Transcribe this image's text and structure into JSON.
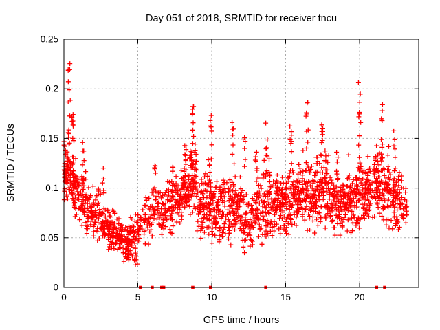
{
  "chart_data": {
    "type": "scatter",
    "title": "Day 051 of 2018, SRMTID for receiver tncu",
    "xlabel": "GPS time / hours",
    "ylabel": "SRMTID / TECUs",
    "xlim": [
      0,
      24
    ],
    "ylim": [
      0,
      0.25
    ],
    "xticks": {
      "values": [
        0,
        5,
        10,
        15,
        20
      ],
      "labels": [
        "0",
        "5",
        "10",
        "15",
        "20"
      ]
    },
    "yticks": {
      "values": [
        0,
        0.05,
        0.1,
        0.15,
        0.2,
        0.25
      ],
      "labels": [
        "0",
        "0.05",
        "0.1",
        "0.15",
        "0.2",
        "0.25"
      ]
    },
    "grid": true,
    "grid_style": "dashed",
    "grid_color": "#a8a8a8",
    "border_color": "#000000",
    "background": "#ffffff",
    "legend": "none",
    "series": [
      {
        "name": "srmtid-points",
        "marker": "plus",
        "color": "#ff0000",
        "marker_size": 7,
        "point_count_approx": 2260,
        "x_data_range": [
          0.05,
          23.2
        ],
        "generator": {
          "note": "dense scatter reconstructed from density profile read off the plot; bins are [x_start, count, band_low, band_high] per 0.5 h",
          "seed": 20180051,
          "bin_width": 0.5,
          "x_cutoff": 23.2,
          "density_bins": [
            [
              0.0,
              65,
              0.085,
              0.155
            ],
            [
              0.5,
              55,
              0.07,
              0.135
            ],
            [
              1.0,
              45,
              0.06,
              0.12
            ],
            [
              1.5,
              40,
              0.05,
              0.105
            ],
            [
              2.0,
              40,
              0.045,
              0.1
            ],
            [
              2.5,
              42,
              0.04,
              0.09
            ],
            [
              3.0,
              48,
              0.035,
              0.08
            ],
            [
              3.5,
              52,
              0.033,
              0.072
            ],
            [
              4.0,
              52,
              0.022,
              0.065
            ],
            [
              4.5,
              42,
              0.018,
              0.08
            ],
            [
              5.0,
              26,
              0.035,
              0.09
            ],
            [
              5.5,
              30,
              0.04,
              0.1
            ],
            [
              6.0,
              34,
              0.042,
              0.105
            ],
            [
              6.5,
              34,
              0.045,
              0.105
            ],
            [
              7.0,
              38,
              0.05,
              0.11
            ],
            [
              7.5,
              46,
              0.055,
              0.12
            ],
            [
              8.0,
              52,
              0.065,
              0.135
            ],
            [
              8.5,
              56,
              0.065,
              0.15
            ],
            [
              9.0,
              44,
              0.045,
              0.115
            ],
            [
              9.5,
              52,
              0.05,
              0.13
            ],
            [
              10.0,
              42,
              0.04,
              0.115
            ],
            [
              10.5,
              38,
              0.038,
              0.105
            ],
            [
              11.0,
              42,
              0.042,
              0.115
            ],
            [
              11.5,
              42,
              0.042,
              0.12
            ],
            [
              12.0,
              38,
              0.032,
              0.105
            ],
            [
              12.5,
              38,
              0.038,
              0.105
            ],
            [
              13.0,
              42,
              0.042,
              0.115
            ],
            [
              13.5,
              50,
              0.048,
              0.13
            ],
            [
              14.0,
              46,
              0.048,
              0.115
            ],
            [
              14.5,
              46,
              0.05,
              0.12
            ],
            [
              15.0,
              46,
              0.05,
              0.125
            ],
            [
              15.5,
              50,
              0.052,
              0.13
            ],
            [
              16.0,
              50,
              0.055,
              0.14
            ],
            [
              16.5,
              46,
              0.052,
              0.13
            ],
            [
              17.0,
              50,
              0.055,
              0.14
            ],
            [
              17.5,
              50,
              0.055,
              0.145
            ],
            [
              18.0,
              46,
              0.05,
              0.125
            ],
            [
              18.5,
              42,
              0.048,
              0.115
            ],
            [
              19.0,
              42,
              0.048,
              0.12
            ],
            [
              19.5,
              42,
              0.05,
              0.12
            ],
            [
              20.0,
              44,
              0.055,
              0.13
            ],
            [
              20.5,
              46,
              0.055,
              0.135
            ],
            [
              21.0,
              50,
              0.065,
              0.148
            ],
            [
              21.5,
              50,
              0.06,
              0.145
            ],
            [
              22.0,
              44,
              0.052,
              0.132
            ],
            [
              22.5,
              42,
              0.048,
              0.12
            ],
            [
              23.0,
              14,
              0.055,
              0.11
            ]
          ],
          "spike_clusters_note": "vertical outlier columns as [x, y_min, y_max, n_points]",
          "spike_clusters": [
            [
              0.35,
              0.145,
              0.226,
              14
            ],
            [
              0.6,
              0.13,
              0.175,
              10
            ],
            [
              1.3,
              0.1,
              0.147,
              6
            ],
            [
              2.7,
              0.095,
              0.13,
              5
            ],
            [
              6.15,
              0.09,
              0.125,
              7
            ],
            [
              7.35,
              0.1,
              0.13,
              5
            ],
            [
              8.25,
              0.11,
              0.155,
              8
            ],
            [
              8.7,
              0.12,
              0.192,
              12
            ],
            [
              9.95,
              0.115,
              0.177,
              10
            ],
            [
              10.85,
              0.085,
              0.118,
              6
            ],
            [
              11.45,
              0.115,
              0.172,
              8
            ],
            [
              12.2,
              0.12,
              0.157,
              6
            ],
            [
              13.0,
              0.095,
              0.138,
              7
            ],
            [
              13.7,
              0.11,
              0.168,
              8
            ],
            [
              14.5,
              0.09,
              0.105,
              4
            ],
            [
              15.35,
              0.115,
              0.177,
              9
            ],
            [
              16.45,
              0.12,
              0.192,
              10
            ],
            [
              17.45,
              0.105,
              0.19,
              12
            ],
            [
              18.5,
              0.095,
              0.137,
              6
            ],
            [
              19.3,
              0.1,
              0.145,
              6
            ],
            [
              20.0,
              0.115,
              0.208,
              13
            ],
            [
              21.2,
              0.1,
              0.135,
              7
            ],
            [
              21.5,
              0.13,
              0.2,
              8
            ],
            [
              22.35,
              0.11,
              0.16,
              6
            ]
          ],
          "y_max_point": 0.226
        }
      },
      {
        "name": "baseline-events",
        "marker": "filled-square",
        "color": "#ff0000",
        "marker_size": 4.6,
        "x": [
          5.18,
          5.97,
          6.62,
          6.75,
          8.72,
          9.92,
          13.66,
          21.15,
          21.7
        ],
        "y": [
          0,
          0,
          0,
          0,
          0,
          0,
          0,
          0,
          0
        ]
      }
    ]
  }
}
